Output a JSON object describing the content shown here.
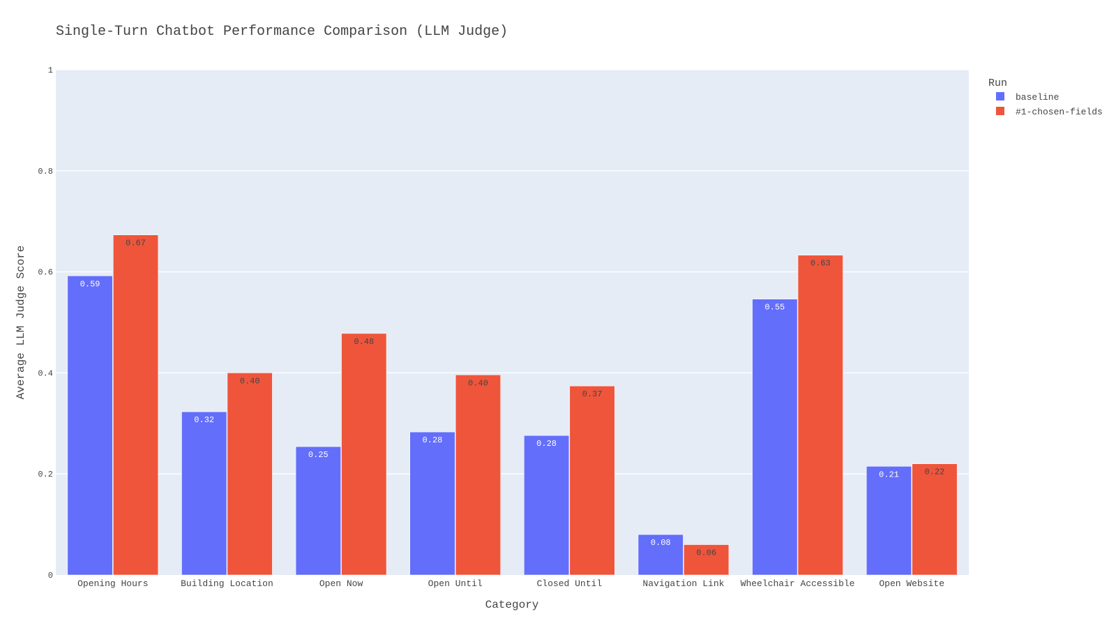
{
  "chart_data": {
    "type": "bar",
    "title": "Single-Turn Chatbot Performance Comparison (LLM Judge)",
    "xlabel": "Category",
    "ylabel": "Average LLM Judge Score",
    "ylim": [
      0,
      1
    ],
    "yticks": [
      "0",
      "0.2",
      "0.4",
      "0.6",
      "0.8",
      "1"
    ],
    "grid": true,
    "legend_title": "Run",
    "legend_position": "top-right",
    "categories": [
      "Opening Hours",
      "Building Location",
      "Open Now",
      "Open Until",
      "Closed Until",
      "Navigation Link",
      "Wheelchair Accessible",
      "Open Website"
    ],
    "series": [
      {
        "name": "baseline",
        "color": "#636efa",
        "label_color": "#ffffff",
        "values": [
          0.592,
          0.323,
          0.254,
          0.283,
          0.276,
          0.08,
          0.546,
          0.215
        ],
        "labels": [
          "0.59",
          "0.32",
          "0.25",
          "0.28",
          "0.28",
          "0.08",
          "0.55",
          "0.21"
        ]
      },
      {
        "name": "#1-chosen-fields",
        "color": "#ef553b",
        "label_color": "#444444",
        "values": [
          0.673,
          0.4,
          0.478,
          0.396,
          0.374,
          0.06,
          0.633,
          0.22
        ],
        "labels": [
          "0.67",
          "0.40",
          "0.48",
          "0.40",
          "0.37",
          "0.06",
          "0.63",
          "0.22"
        ]
      }
    ]
  }
}
